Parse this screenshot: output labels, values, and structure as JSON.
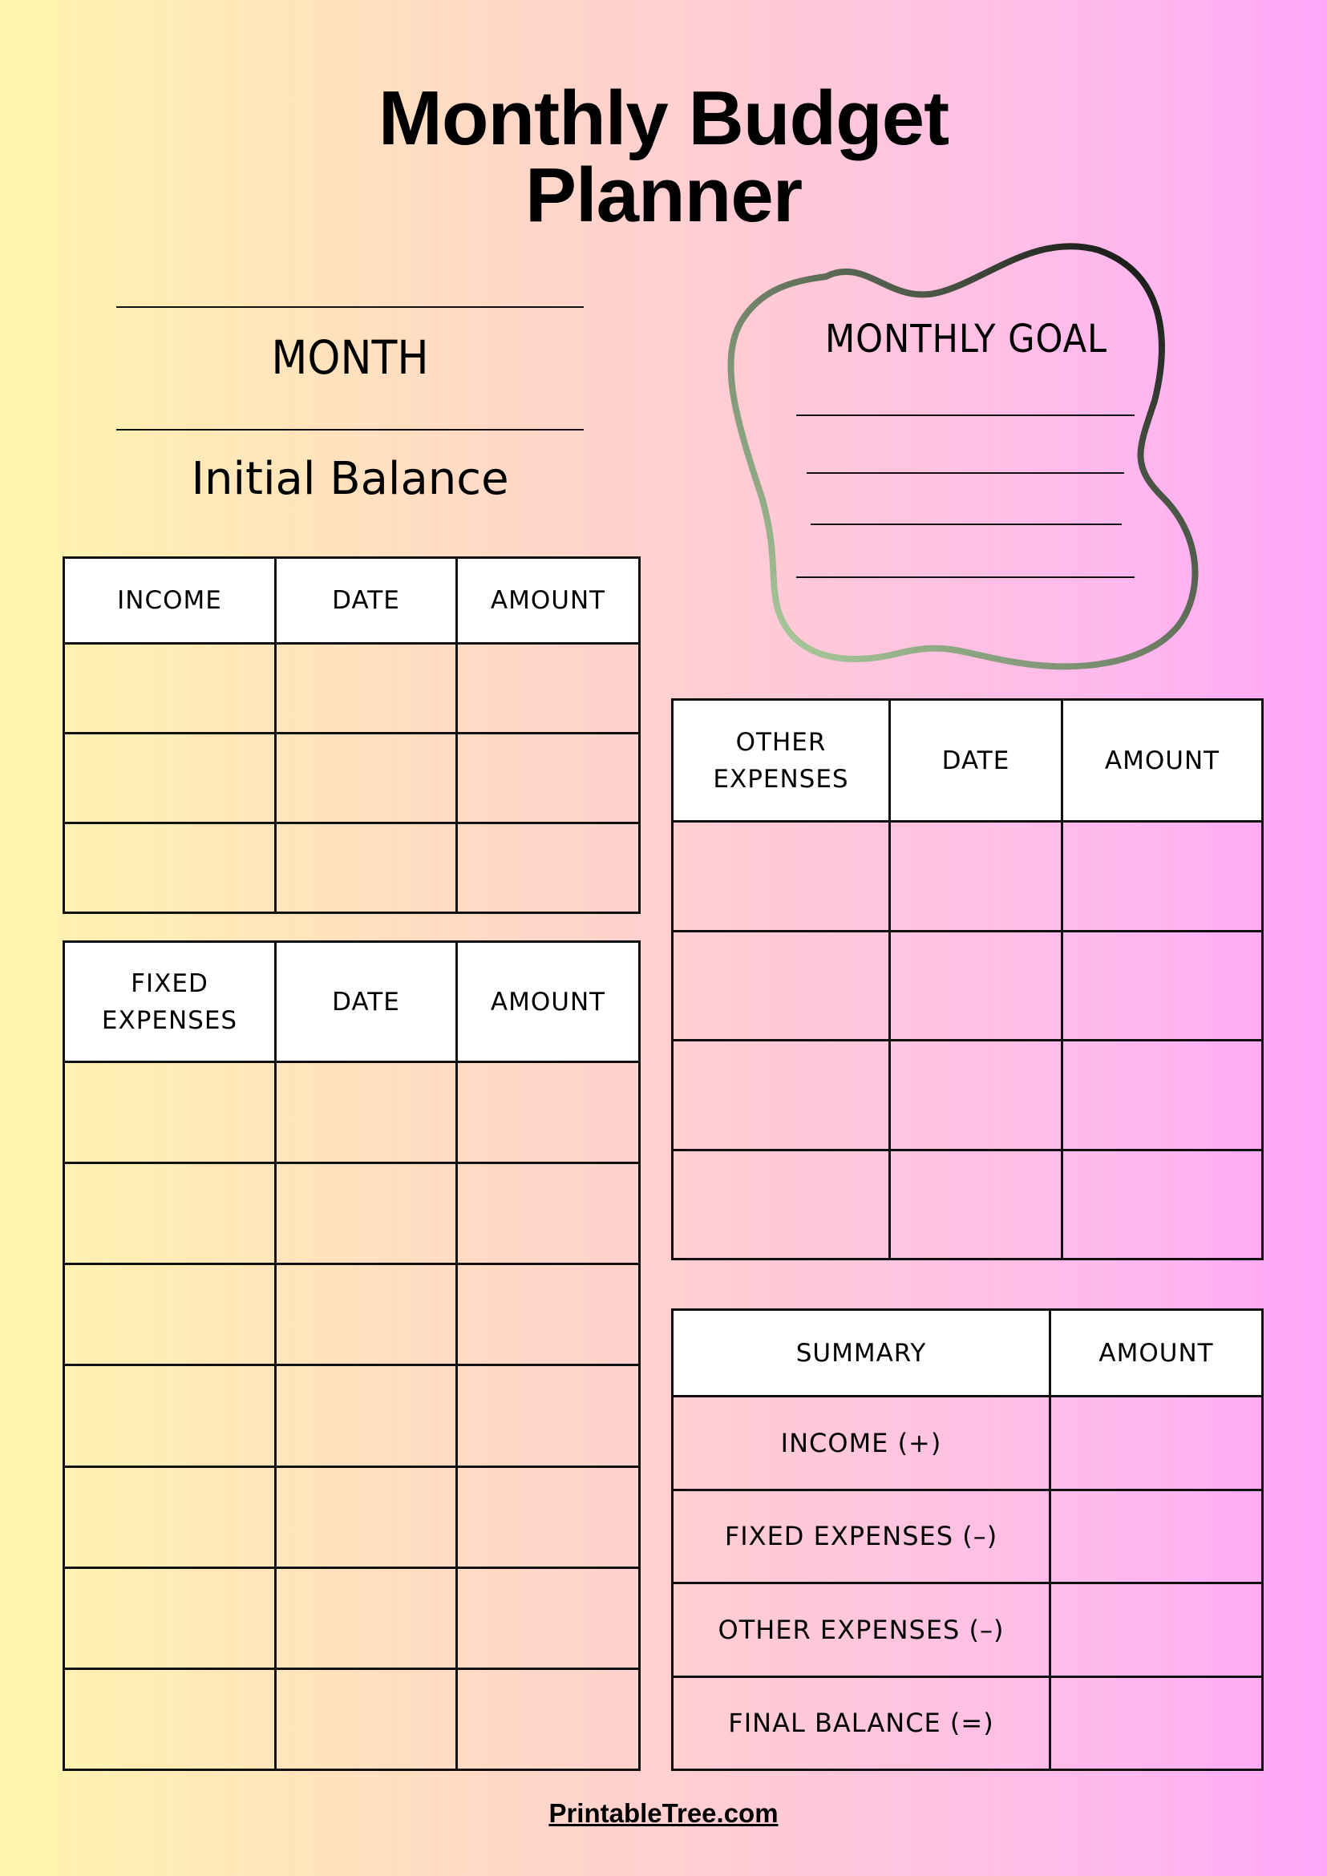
{
  "title": {
    "line1": "Monthly Budget",
    "line2": "Planner"
  },
  "month_label": "MONTH",
  "initial_balance_label": "Initial Balance",
  "goal": {
    "label": "MONTHLY GOAL",
    "stroke_colors": [
      "#a8c49a",
      "#111111"
    ]
  },
  "income_table": {
    "headers": [
      "INCOME",
      "DATE",
      "AMOUNT"
    ],
    "rows": 3
  },
  "fixed_table": {
    "headers": [
      "FIXED EXPENSES",
      "DATE",
      "AMOUNT"
    ],
    "rows": 7
  },
  "other_table": {
    "headers": [
      "OTHER EXPENSES",
      "DATE",
      "AMOUNT"
    ],
    "rows": 4
  },
  "summary_table": {
    "headers": [
      "SUMMARY",
      "AMOUNT"
    ],
    "rows": [
      "INCOME (+)",
      "FIXED EXPENSES (–)",
      "OTHER EXPENSES (–)",
      "FINAL BALANCE (=)"
    ]
  },
  "footer": "PrintableTree.com",
  "colors": {
    "gradient_left": "#fff6ae",
    "gradient_right": "#ffa6f9"
  }
}
